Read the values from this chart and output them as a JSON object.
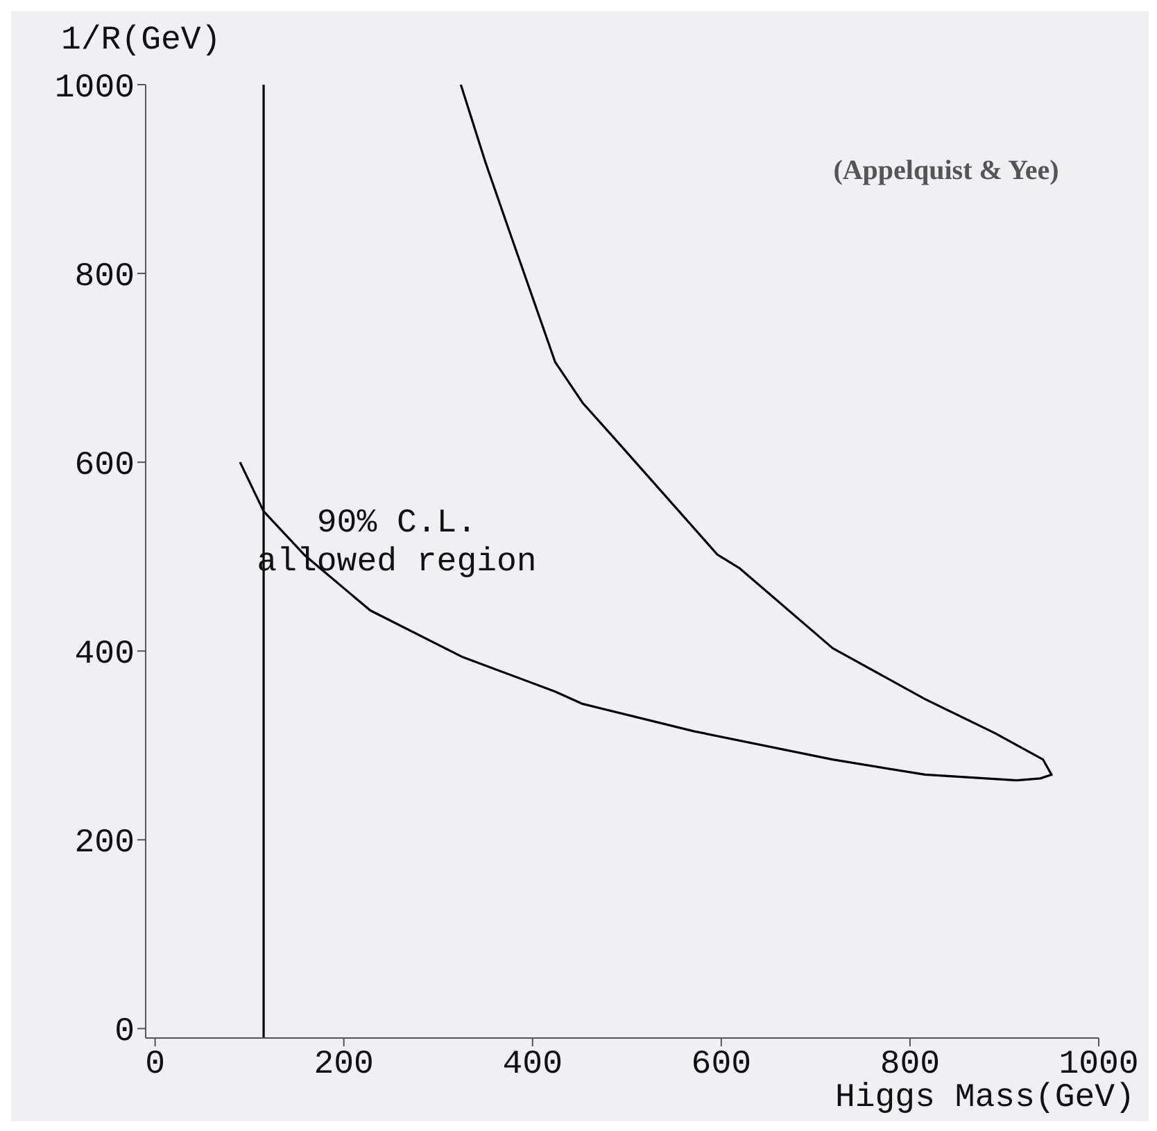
{
  "chart_data": {
    "type": "line",
    "xlabel": "Higgs Mass(GeV)",
    "ylabel": "1/R(GeV)",
    "xlim": [
      -10,
      1000
    ],
    "ylim": [
      -10,
      1000
    ],
    "xticks": [
      0,
      200,
      400,
      600,
      800,
      1000
    ],
    "yticks": [
      0,
      200,
      400,
      600,
      800,
      1000
    ],
    "marker": "none",
    "line_style": "solid",
    "series": [
      {
        "color": "#000000",
        "x": [
          90,
          115,
          159,
          228,
          325,
          424,
          453,
          571,
          718,
          816,
          913,
          938,
          950,
          941,
          890,
          816,
          718,
          619,
          596,
          487,
          453,
          424,
          375,
          350,
          324
        ],
        "values": [
          600,
          548,
          501,
          443,
          394,
          357,
          344,
          315,
          285,
          269,
          263,
          265,
          269,
          285,
          313,
          349,
          403,
          488,
          502,
          625,
          663,
          706,
          846,
          918,
          1000
        ]
      }
    ],
    "ref_lines": [
      {
        "axis": "x",
        "value": 115,
        "color": "#000000"
      }
    ],
    "annotations": [
      "90% C.L.",
      "allowed region",
      "(Appelquist & Yee)"
    ]
  }
}
